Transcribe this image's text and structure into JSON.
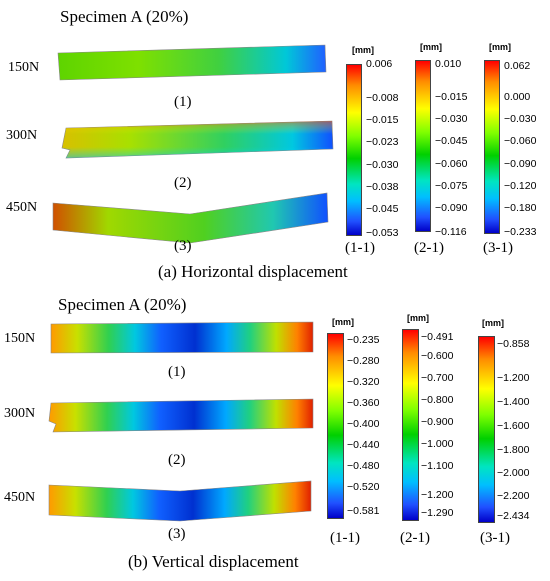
{
  "sections": [
    {
      "title": "Specimen A (20%)",
      "caption": "(a) Horizontal displacement",
      "rows": [
        {
          "load": "150N",
          "label": "(1)"
        },
        {
          "load": "300N",
          "label": "(2)"
        },
        {
          "load": "450N",
          "label": "(3)"
        }
      ],
      "legends": [
        {
          "unit": "[mm]",
          "label": "(1-1)",
          "ticks": [
            "0.006",
            "−0.008",
            "−0.015",
            "−0.023",
            "−0.030",
            "−0.038",
            "−0.045",
            "−0.053"
          ]
        },
        {
          "unit": "[mm]",
          "label": "(2-1)",
          "ticks": [
            "0.010",
            "−0.015",
            "−0.030",
            "−0.045",
            "−0.060",
            "−0.075",
            "−0.090",
            "−0.116"
          ]
        },
        {
          "unit": "[mm]",
          "label": "(3-1)",
          "ticks": [
            "0.062",
            "0.000",
            "−0.030",
            "−0.060",
            "−0.090",
            "−0.120",
            "−0.180",
            "−0.233"
          ]
        }
      ]
    },
    {
      "title": "Specimen A (20%)",
      "caption": "(b) Vertical displacement",
      "rows": [
        {
          "load": "150N",
          "label": "(1)"
        },
        {
          "load": "300N",
          "label": "(2)"
        },
        {
          "load": "450N",
          "label": "(3)"
        }
      ],
      "legends": [
        {
          "unit": "[mm]",
          "label": "(1-1)",
          "ticks": [
            "−0.235",
            "−0.280",
            "−0.320",
            "−0.360",
            "−0.400",
            "−0.440",
            "−0.480",
            "−0.520",
            "−0.581"
          ]
        },
        {
          "unit": "[mm]",
          "label": "(2-1)",
          "ticks": [
            "−0.491",
            "−0.600",
            "−0.700",
            "−0.800",
            "−0.900",
            "−1.000",
            "−1.100",
            "−1.200",
            "−1.290"
          ]
        },
        {
          "unit": "[mm]",
          "label": "(3-1)",
          "ticks": [
            "−0.858",
            "−1.200",
            "−1.400",
            "−1.600",
            "−1.800",
            "−2.000",
            "−2.200",
            "−2.434"
          ]
        }
      ]
    }
  ]
}
